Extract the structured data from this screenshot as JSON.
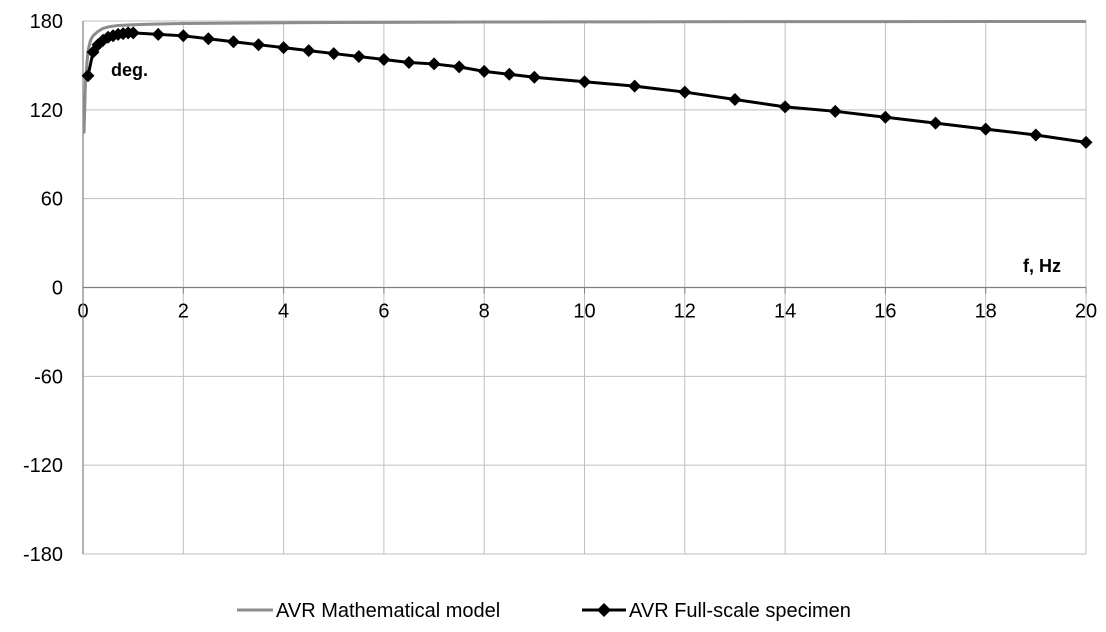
{
  "chart_data": {
    "type": "line",
    "title": "",
    "xlabel": "f, Hz",
    "ylabel": "deg.",
    "xlim": [
      0,
      20
    ],
    "ylim": [
      -180,
      180
    ],
    "x_ticks": [
      0,
      2,
      4,
      6,
      8,
      10,
      12,
      14,
      16,
      18,
      20
    ],
    "y_ticks": [
      -180,
      -120,
      -60,
      0,
      60,
      120,
      180
    ],
    "grid": true,
    "legend_position": "bottom",
    "series": [
      {
        "name": "AVR Mathematical model",
        "color": "#8c8c8c",
        "marker": "none",
        "x": [
          0.02,
          0.05,
          0.1,
          0.15,
          0.2,
          0.3,
          0.4,
          0.5,
          0.7,
          1.0,
          1.5,
          2,
          3,
          4,
          5,
          6,
          8,
          10,
          12,
          14,
          16,
          18,
          20
        ],
        "y": [
          104,
          140,
          160,
          167,
          170,
          173,
          175,
          176,
          177,
          177.5,
          178,
          178.3,
          178.6,
          178.8,
          179,
          179.1,
          179.3,
          179.4,
          179.5,
          179.6,
          179.6,
          179.7,
          179.7
        ]
      },
      {
        "name": "AVR Full-scale specimen",
        "color": "#000000",
        "marker": "diamond",
        "x": [
          0.1,
          0.2,
          0.3,
          0.4,
          0.5,
          0.6,
          0.7,
          0.8,
          0.9,
          1.0,
          1.5,
          2,
          2.5,
          3,
          3.5,
          4,
          4.5,
          5,
          5.5,
          6,
          6.5,
          7,
          7.5,
          8,
          8.5,
          9,
          10,
          11,
          12,
          13,
          14,
          15,
          16,
          17,
          18,
          19,
          20
        ],
        "y": [
          143,
          159,
          164,
          167,
          169,
          170,
          171,
          171.5,
          172,
          172,
          171,
          170,
          168,
          166,
          164,
          162,
          160,
          158,
          156,
          154,
          152,
          151,
          149,
          146,
          144,
          142,
          139,
          136,
          132,
          127,
          122,
          119,
          115,
          111,
          107,
          103,
          98
        ]
      }
    ]
  }
}
